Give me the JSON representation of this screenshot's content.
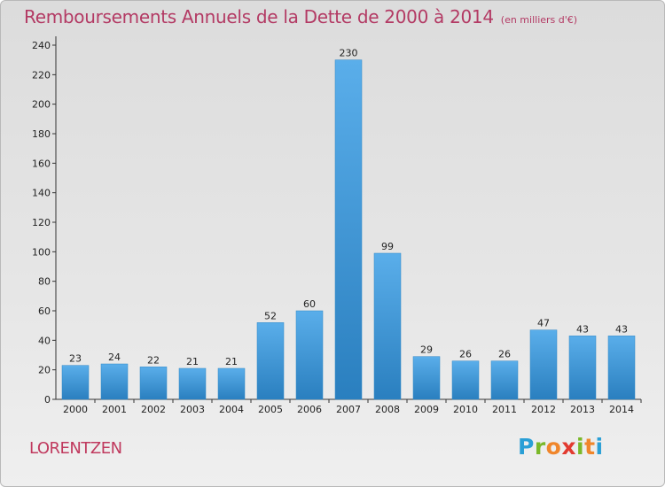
{
  "title": "Remboursements Annuels de la Dette de 2000 à 2014",
  "unit_note": "(en milliers d'€)",
  "commune": "LORENTZEN",
  "logo": {
    "letters": [
      "P",
      "r",
      "o",
      "x",
      "i",
      "t",
      "i"
    ],
    "colors": [
      "#2a9fd6",
      "#7ab829",
      "#f0862b",
      "#e23a2f",
      "#7ab829",
      "#f0862b",
      "#2a9fd6"
    ]
  },
  "colors": {
    "bar_light": "#5aaeea",
    "bar_dark": "#2a7fbf",
    "title": "#b33a64",
    "commune": "#c0395e"
  },
  "chart_data": {
    "type": "bar",
    "title": "Remboursements Annuels de la Dette de 2000 à 2014",
    "categories": [
      "2000",
      "2001",
      "2002",
      "2003",
      "2004",
      "2005",
      "2006",
      "2007",
      "2008",
      "2009",
      "2010",
      "2011",
      "2012",
      "2013",
      "2014"
    ],
    "values": [
      23,
      24,
      22,
      21,
      21,
      52,
      60,
      230,
      99,
      29,
      26,
      26,
      47,
      43,
      43
    ],
    "ylim": [
      0,
      240
    ],
    "yticks": [
      0,
      20,
      40,
      60,
      80,
      100,
      120,
      140,
      160,
      180,
      200,
      220,
      240
    ],
    "grid": false,
    "legend": "none"
  }
}
